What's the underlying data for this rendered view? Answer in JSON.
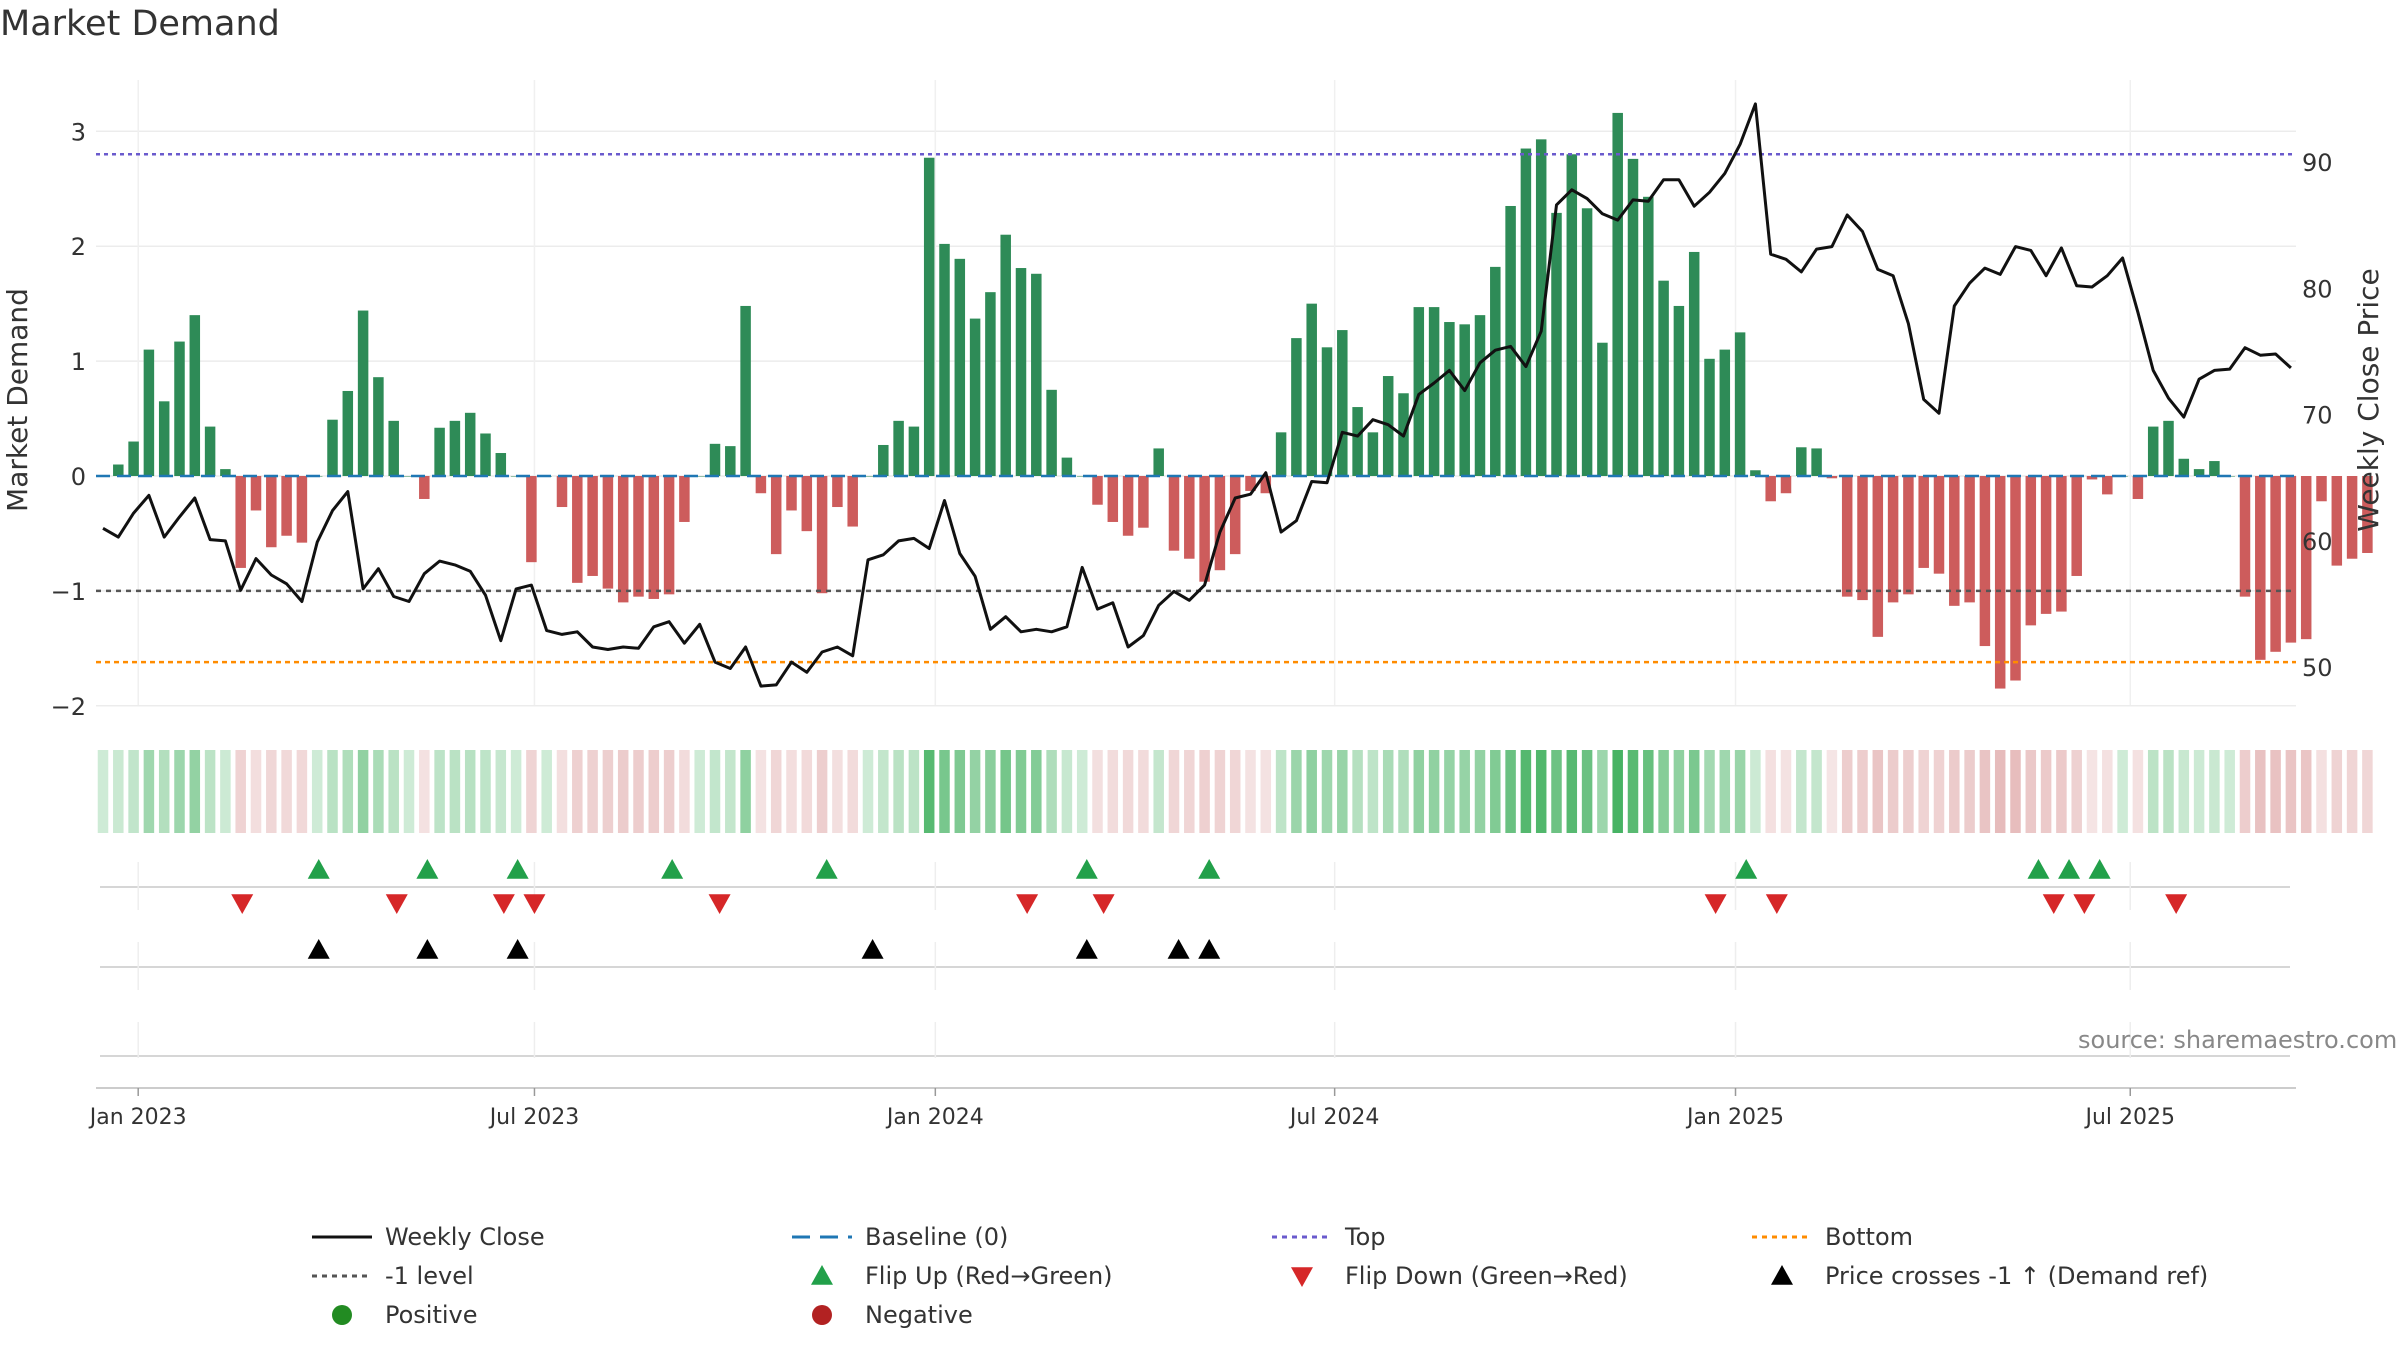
{
  "chart_data": {
    "type": "bar",
    "title": "Market Demand",
    "ylabel": "Market Demand",
    "y2label": "Weekly Close Price",
    "ylim": [
      -2.1,
      3.3
    ],
    "y2lim": [
      45,
      95.5
    ],
    "yticks": [
      -2,
      -1,
      0,
      1,
      2,
      3
    ],
    "y2ticks": [
      50,
      60,
      70,
      80,
      90
    ],
    "yticks_labels": [
      "−2",
      "−1",
      "0",
      "1",
      "2",
      "3"
    ],
    "y2ticks_labels": [
      "50",
      "60",
      "70",
      "80",
      "90"
    ],
    "xticks": [
      {
        "label": "Jan 2023",
        "week": 2.3
      },
      {
        "label": "Jul 2023",
        "week": 28.2
      },
      {
        "label": "Jan 2024",
        "week": 54.4
      },
      {
        "label": "Jul 2024",
        "week": 80.5
      },
      {
        "label": "Jan 2025",
        "week": 106.7
      },
      {
        "label": "Jul 2025",
        "week": 132.5
      }
    ],
    "top_level": 2.8,
    "bottom_level": -1.62,
    "minus_one_level": -1,
    "demand": [
      0.0,
      0.1,
      0.3,
      1.1,
      0.65,
      1.17,
      1.4,
      0.43,
      0.06,
      -0.8,
      -0.3,
      -0.62,
      -0.52,
      -0.58,
      0.0,
      0.49,
      0.74,
      1.44,
      0.86,
      0.48,
      0.0,
      -0.2,
      0.42,
      0.48,
      0.55,
      0.37,
      0.2,
      0.0,
      -0.75,
      0.0,
      -0.27,
      -0.93,
      -0.87,
      -0.98,
      -1.1,
      -1.05,
      -1.07,
      -1.03,
      -0.4,
      0.0,
      0.28,
      0.26,
      1.48,
      -0.15,
      -0.68,
      -0.3,
      -0.48,
      -1.02,
      -0.27,
      -0.44,
      0.0,
      0.27,
      0.48,
      0.43,
      2.77,
      2.02,
      1.89,
      1.37,
      1.6,
      2.1,
      1.81,
      1.76,
      0.75,
      0.16,
      0.0,
      -0.25,
      -0.4,
      -0.52,
      -0.45,
      0.24,
      -0.65,
      -0.72,
      -0.92,
      -0.82,
      -0.68,
      -0.13,
      -0.15,
      0.38,
      1.2,
      1.5,
      1.12,
      1.27,
      0.6,
      0.38,
      0.87,
      0.72,
      1.47,
      1.47,
      1.34,
      1.32,
      1.4,
      1.82,
      2.35,
      2.85,
      2.93,
      2.29,
      2.8,
      2.33,
      1.16,
      3.16,
      2.76,
      2.43,
      1.7,
      1.48,
      1.95,
      1.02,
      1.1,
      1.25,
      0.05,
      -0.22,
      -0.15,
      0.25,
      0.24,
      -0.02,
      -1.05,
      -1.08,
      -1.4,
      -1.1,
      -1.03,
      -0.8,
      -0.85,
      -1.13,
      -1.1,
      -1.48,
      -1.85,
      -1.78,
      -1.3,
      -1.2,
      -1.18,
      -0.87,
      -0.03,
      -0.16,
      0.0,
      -0.2,
      0.43,
      0.48,
      0.15,
      0.06,
      0.13,
      0.0,
      -1.05,
      -1.6,
      -1.53,
      -1.45,
      -1.42,
      -0.22,
      -0.78,
      -0.72,
      -0.67
    ],
    "close": [
      61,
      60.3,
      62.2,
      63.6,
      60.3,
      61.9,
      63.4,
      60.1,
      60,
      56.1,
      58.6,
      57.3,
      56.6,
      55.2,
      59.9,
      62.4,
      63.9,
      56.2,
      57.8,
      55.6,
      55.2,
      57.4,
      58.4,
      58.1,
      57.6,
      55.7,
      52.1,
      56.2,
      56.5,
      52.9,
      52.6,
      52.8,
      51.6,
      51.4,
      51.6,
      51.5,
      53.2,
      53.6,
      51.9,
      53.4,
      50.4,
      49.9,
      51.6,
      48.5,
      48.6,
      50.4,
      49.6,
      51.2,
      51.6,
      50.9,
      58.5,
      58.9,
      60,
      60.2,
      59.4,
      63.2,
      59,
      57.2,
      53,
      54,
      52.8,
      53,
      52.8,
      53.2,
      57.9,
      54.6,
      55.1,
      51.6,
      52.5,
      54.9,
      56,
      55.3,
      56.5,
      60.7,
      63.4,
      63.7,
      65.4,
      60.7,
      61.6,
      64.7,
      64.6,
      68.6,
      68.3,
      69.6,
      69.2,
      68.3,
      71.6,
      72.5,
      73.5,
      71.9,
      74.1,
      75.1,
      75.4,
      73.8,
      76.6,
      86.6,
      87.8,
      87.1,
      85.9,
      85.4,
      87,
      86.9,
      88.6,
      88.6,
      86.5,
      87.6,
      89.1,
      91.4,
      94.6,
      82.7,
      82.3,
      81.3,
      83.1,
      83.3,
      85.8,
      84.5,
      81.5,
      81,
      77.2,
      71.2,
      70.1,
      78.6,
      80.4,
      81.6,
      81.1,
      83.3,
      83,
      81,
      83.2,
      80.2,
      80.1,
      81,
      82.4,
      78.1,
      73.5,
      71.3,
      69.8,
      72.8,
      73.5,
      73.6,
      75.3,
      74.7,
      74.8,
      73.7
    ],
    "color_strip": {
      "description": "weekly colour strip below bars: green = positive demand, red = negative",
      "positive_color": "#2e8b57",
      "negative_color": "#cd5c5c"
    },
    "flip_up_weeks": [
      14.1,
      21.2,
      27.1,
      37.2,
      47.3,
      64.3,
      72.3,
      107.4,
      126.5,
      128.5,
      130.5
    ],
    "flip_down_weeks": [
      9.1,
      19.2,
      26.2,
      28.2,
      40.3,
      60.4,
      65.4,
      105.4,
      109.4,
      127.5,
      129.5,
      135.5
    ],
    "price_cross_weeks": [
      14.1,
      21.2,
      27.1,
      50.3,
      64.3,
      70.3,
      72.3
    ],
    "legend": {
      "weekly_close": "Weekly Close",
      "baseline": "Baseline (0)",
      "top": "Top",
      "bottom": "Bottom",
      "minus_one": "-1 level",
      "flip_up": "Flip Up (Red→Green)",
      "flip_down": "Flip Down (Green→Red)",
      "price_cross": "Price crosses -1 ↑ (Demand ref)",
      "positive": "Positive",
      "negative": "Negative"
    },
    "colors": {
      "positive_bar": "#2e8b57",
      "negative_bar": "#cd5c5c",
      "close_line": "#111111",
      "baseline": "#1f77b4",
      "top": "#6a5acd",
      "bottom": "#ff8c00",
      "minus_one": "#555555",
      "flip_up": "#22a04a",
      "flip_down": "#d62728",
      "price_cross": "#000000",
      "positive_dot": "#228b22",
      "negative_dot": "#b22222"
    }
  },
  "source": "source: sharemaestro.com"
}
